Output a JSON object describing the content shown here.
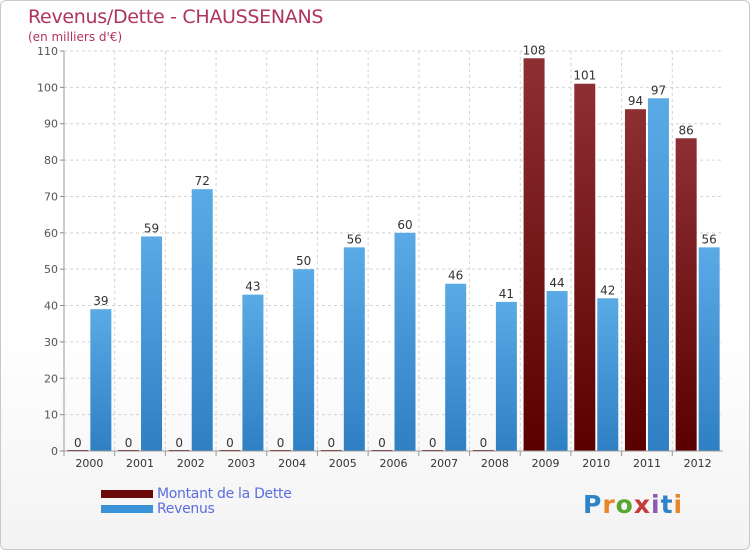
{
  "header": {
    "title": "Revenus/Dette - CHAUSSENANS",
    "subtitle": "(en milliers d'€)"
  },
  "legend": {
    "items": [
      {
        "label": "Montant de la Dette",
        "color": "#6b0a0a"
      },
      {
        "label": "Revenus",
        "color": "#3a93d8"
      }
    ]
  },
  "logo": {
    "text": "Proxiti"
  },
  "chart_data": {
    "type": "bar",
    "title": "Revenus/Dette - CHAUSSENANS",
    "subtitle": "(en milliers d'€)",
    "categories": [
      "2000",
      "2001",
      "2002",
      "2003",
      "2004",
      "2005",
      "2006",
      "2007",
      "2008",
      "2009",
      "2010",
      "2011",
      "2012"
    ],
    "series": [
      {
        "name": "Montant de la Dette",
        "color": "#6b0a0a",
        "values": [
          0,
          0,
          0,
          0,
          0,
          0,
          0,
          0,
          0,
          108,
          101,
          94,
          86
        ]
      },
      {
        "name": "Revenus",
        "color": "#3a93d8",
        "values": [
          39,
          59,
          72,
          43,
          50,
          56,
          60,
          46,
          41,
          44,
          42,
          97,
          56
        ]
      }
    ],
    "ylim": [
      0,
      110
    ],
    "yticks": [
      0,
      10,
      20,
      30,
      40,
      50,
      60,
      70,
      80,
      90,
      100,
      110
    ],
    "grid": true,
    "legend_position": "bottom-left"
  }
}
